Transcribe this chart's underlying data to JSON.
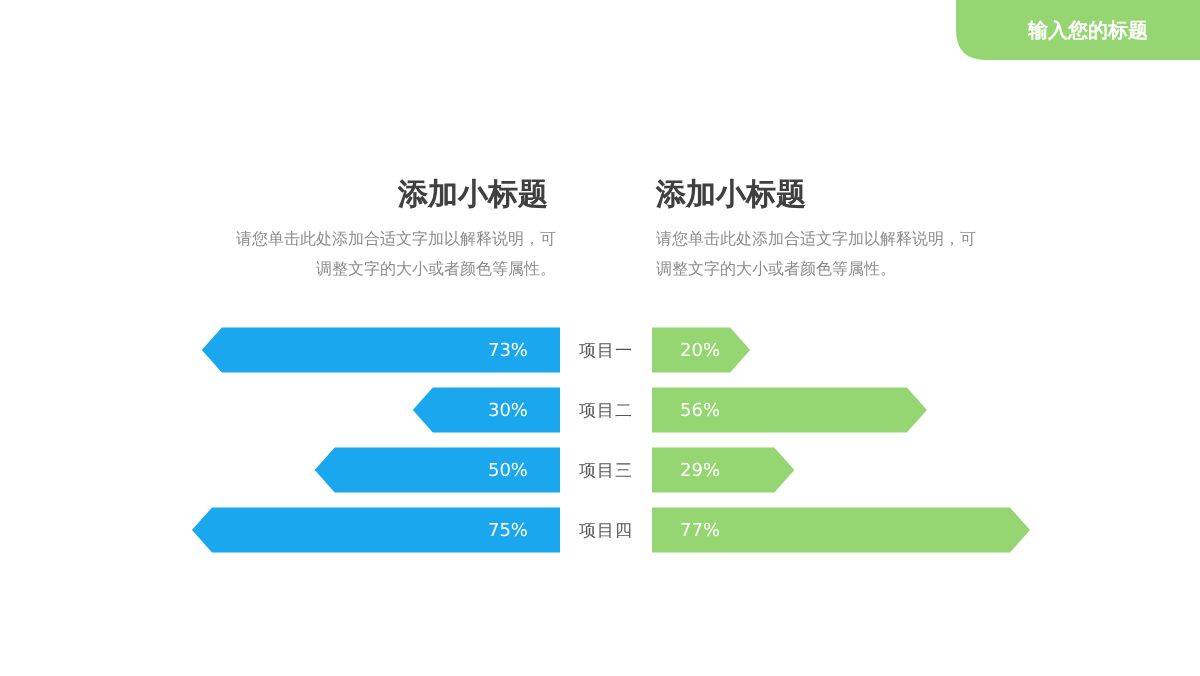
{
  "chart_data": [
    {
      "type": "bar",
      "orientation": "horizontal",
      "title": "添加小标题",
      "subtitle": "请您单击此处添加合适文字加以解释说明，可调整文字的大小或者颜色等属性。",
      "annotations": [
        "输入您的标题"
      ],
      "categories": [
        "项目一",
        "项目二",
        "项目三",
        "项目四"
      ],
      "series": [
        {
          "color": "#1aa7ee",
          "values": [
            73,
            30,
            50,
            75
          ],
          "value_labels": [
            "73%",
            "30%",
            "50%",
            "75%"
          ]
        }
      ]
    },
    {
      "type": "bar",
      "orientation": "horizontal",
      "title": "添加小标题",
      "subtitle": "请您单击此处添加合适文字加以解释说明，可调整文字的大小或者颜色等属性。",
      "categories": [
        null,
        null,
        null,
        null
      ],
      "series": [
        {
          "color": "#95d672",
          "values": [
            20,
            56,
            29,
            77
          ],
          "value_labels": [
            "20%",
            "56%",
            "29%",
            "77%"
          ]
        }
      ]
    }
  ]
}
